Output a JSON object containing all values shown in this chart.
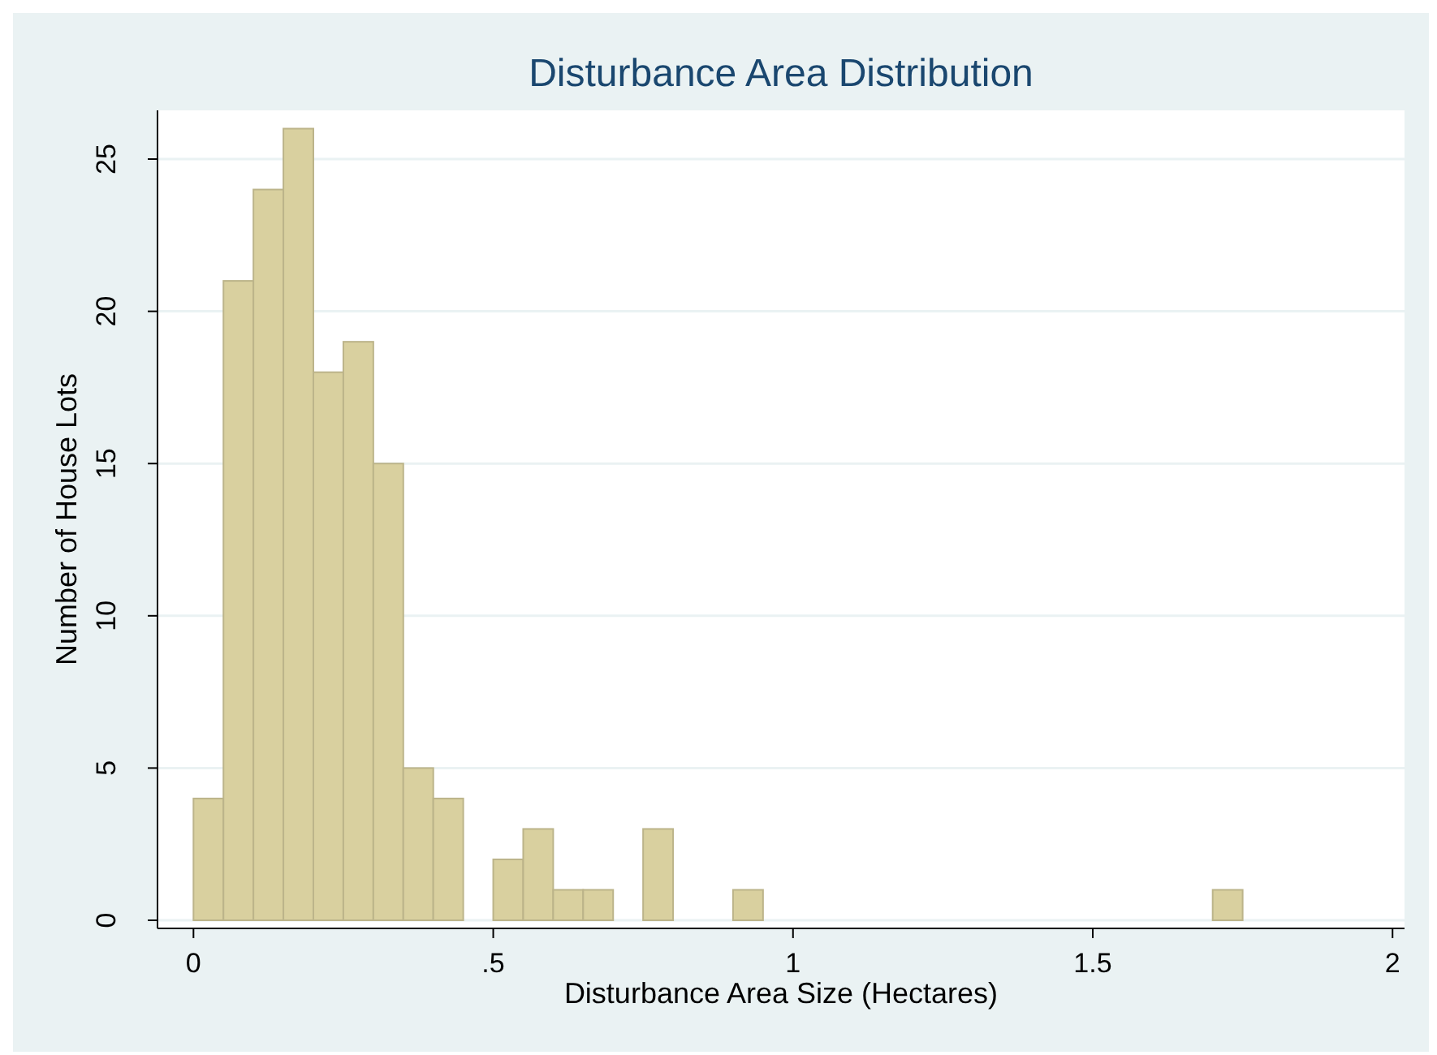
{
  "chart_data": {
    "type": "histogram",
    "title": "Disturbance Area Distribution",
    "xlabel": "Disturbance Area Size (Hectares)",
    "ylabel": "Number of House Lots",
    "bins": [
      0,
      0.05,
      0.1,
      0.15,
      0.2,
      0.25,
      0.3,
      0.35,
      0.4,
      0.45,
      0.5,
      0.55,
      0.6,
      0.65,
      0.7,
      0.75,
      0.8,
      0.85,
      0.9,
      0.95,
      1,
      1.05,
      1.1,
      1.15,
      1.2,
      1.25,
      1.3,
      1.35,
      1.4,
      1.45,
      1.5,
      1.55,
      1.6,
      1.65,
      1.7,
      1.75
    ],
    "values": [
      4,
      21,
      24,
      26,
      18,
      19,
      15,
      5,
      4,
      0,
      2,
      3,
      1,
      1,
      0,
      3,
      0,
      0,
      1,
      0,
      0,
      0,
      0,
      0,
      0,
      0,
      0,
      0,
      0,
      0,
      0,
      0,
      0,
      0,
      1
    ],
    "color": "#d9d09f",
    "xlim": [
      -0.06,
      2.02
    ],
    "ylim": [
      0,
      26.6
    ],
    "xticks": [
      0,
      {
        "value": 0.5,
        "label": ".5"
      },
      1,
      1.5,
      2
    ],
    "yticks": [
      0,
      5,
      10,
      15,
      20,
      25
    ],
    "grid": "y"
  }
}
